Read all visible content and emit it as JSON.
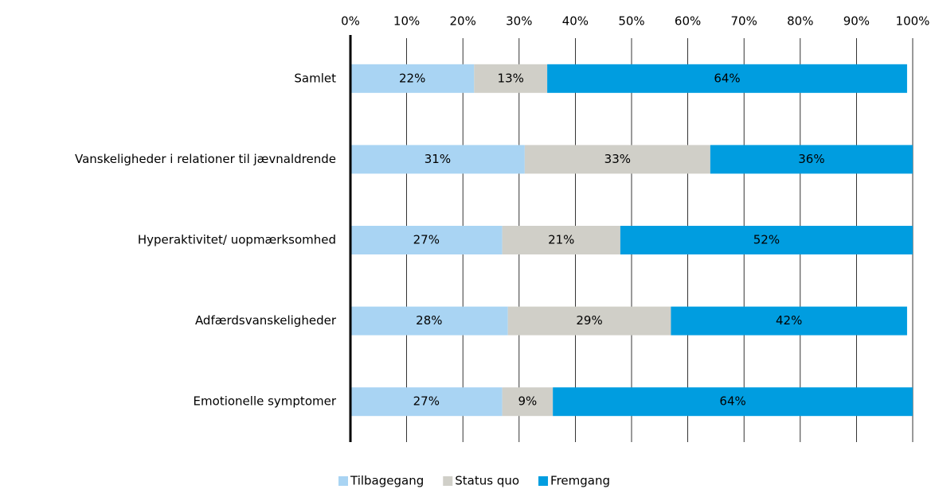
{
  "chart_data": {
    "type": "stacked_bar_horizontal",
    "categories": [
      "Samlet",
      "Vanskeligheder i relationer til jævnaldrende",
      "Hyperaktivitet/ uopmærksomhed",
      "Adfærdsvanskeligheder",
      "Emotionelle symptomer"
    ],
    "series": [
      {
        "name": "Tilbagegang",
        "color": "#a9d4f3",
        "values": [
          22,
          31,
          27,
          28,
          27
        ],
        "value_labels": [
          "22%",
          "31%",
          "27%",
          "28%",
          "27%"
        ]
      },
      {
        "name": "Status quo",
        "color": "#d0cfc8",
        "values": [
          13,
          33,
          21,
          29,
          9
        ],
        "value_labels": [
          "13%",
          "33%",
          "21%",
          "29%",
          "9%"
        ]
      },
      {
        "name": "Fremgang",
        "color": "#009de0",
        "values": [
          64,
          36,
          52,
          42,
          64
        ],
        "value_labels": [
          "64%",
          "36%",
          "52%",
          "42%",
          "64%"
        ]
      }
    ],
    "xlim": [
      0,
      100
    ],
    "xticks": [
      {
        "value": 0,
        "label": "0%"
      },
      {
        "value": 10,
        "label": "10%"
      },
      {
        "value": 20,
        "label": "20%"
      },
      {
        "value": 30,
        "label": "30%"
      },
      {
        "value": 40,
        "label": "40%"
      },
      {
        "value": 50,
        "label": "50%"
      },
      {
        "value": 60,
        "label": "60%"
      },
      {
        "value": 70,
        "label": "70%"
      },
      {
        "value": 80,
        "label": "80%"
      },
      {
        "value": 90,
        "label": "90%"
      },
      {
        "value": 100,
        "label": "100%"
      }
    ],
    "grid": true,
    "legend": "bottom"
  }
}
